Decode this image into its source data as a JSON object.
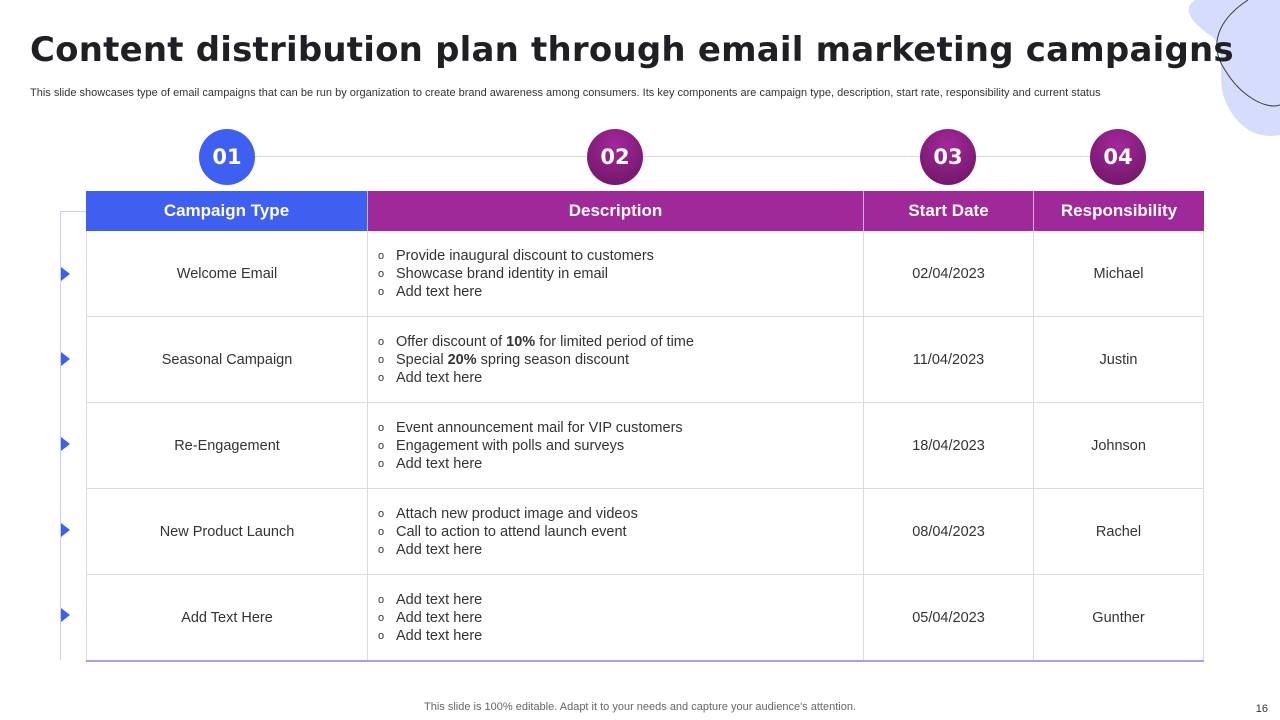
{
  "title": "Content distribution plan through email marketing campaigns",
  "subtitle": "This slide showcases type of email campaigns that can be run by organization to create brand awareness among consumers. Its key components are campaign type, description, start rate, responsibility and current status",
  "steps": [
    "01",
    "02",
    "03",
    "04"
  ],
  "headers": {
    "campaign_type": "Campaign Type",
    "description": "Description",
    "start_date": "Start Date",
    "responsibility": "Responsibility"
  },
  "rows": [
    {
      "type": "Welcome Email",
      "desc": [
        "Provide inaugural discount to customers",
        "Showcase brand identity in email",
        "Add text here"
      ],
      "date": "02/04/2023",
      "owner": "Michael"
    },
    {
      "type": "Seasonal Campaign",
      "desc_rich": [
        {
          "pre": "Offer discount of ",
          "bold": "10%",
          "post": " for limited period of time"
        },
        {
          "pre": "Special ",
          "bold": "20%",
          "post": " spring season discount"
        }
      ],
      "desc_tail": "Add text here",
      "date": "11/04/2023",
      "owner": "Justin"
    },
    {
      "type": "Re-Engagement",
      "desc": [
        "Event announcement mail for VIP customers",
        "Engagement with polls and surveys",
        "Add text here"
      ],
      "date": "18/04/2023",
      "owner": "Johnson"
    },
    {
      "type": "New Product Launch",
      "desc": [
        "Attach new product image and videos",
        "Call to action to attend launch event",
        "Add text here"
      ],
      "date": "08/04/2023",
      "owner": "Rachel"
    },
    {
      "type": "Add Text Here",
      "desc": [
        "Add text here",
        "Add text here",
        "Add text here"
      ],
      "date": "05/04/2023",
      "owner": "Gunther"
    }
  ],
  "bullet_glyph": "o",
  "footer": "This slide is 100% editable. Adapt it to your needs and capture your audience's attention.",
  "page_number": "16",
  "colors": {
    "blue": "#3f5ff0",
    "purple": "#a0299a",
    "dark_purple": "#6a1460"
  }
}
